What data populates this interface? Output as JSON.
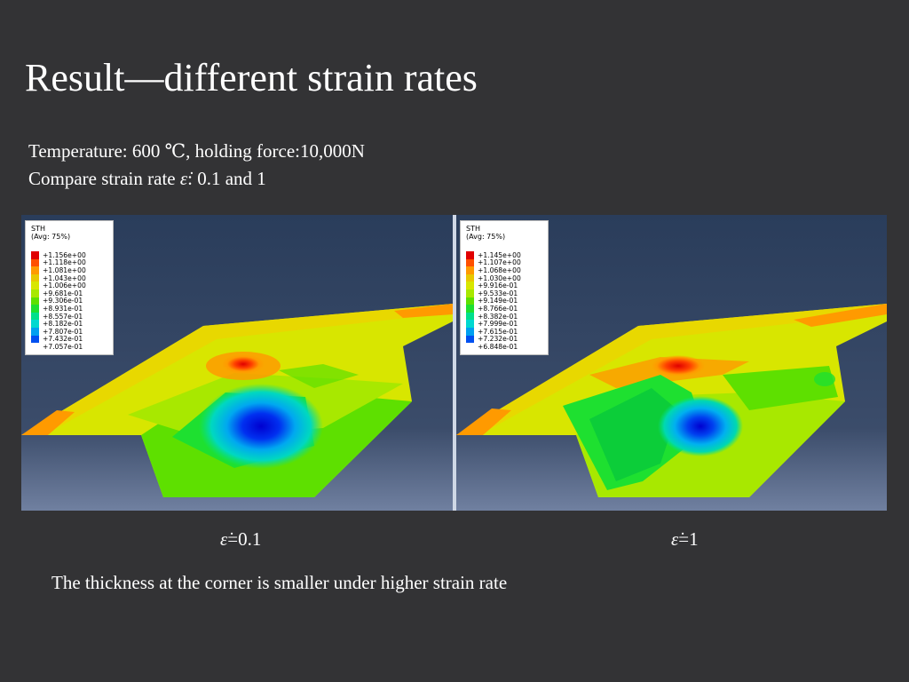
{
  "slide": {
    "title": "Result—different strain rates",
    "subtitle_line1": "Temperature: 600 ℃, holding force:10,000N",
    "subtitle_line2_prefix": "Compare strain rate ",
    "strain_symbol": "ε̇",
    "subtitle_line2_suffix": ": 0.1 and 1",
    "note": "The thickness at the corner is smaller under higher strain rate"
  },
  "panels": [
    {
      "caption_value": "=0.1",
      "legend": {
        "variable": "STH",
        "averaging": "(Avg: 75%)",
        "values": [
          "+1.156e+00",
          "+1.118e+00",
          "+1.081e+00",
          "+1.043e+00",
          "+1.006e+00",
          "+9.681e-01",
          "+9.306e-01",
          "+8.931e-01",
          "+8.557e-01",
          "+8.182e-01",
          "+7.807e-01",
          "+7.432e-01",
          "+7.057e-01"
        ]
      }
    },
    {
      "caption_value": "=1",
      "legend": {
        "variable": "STH",
        "averaging": "(Avg: 75%)",
        "values": [
          "+1.145e+00",
          "+1.107e+00",
          "+1.068e+00",
          "+1.030e+00",
          "+9.916e-01",
          "+9.533e-01",
          "+9.149e-01",
          "+8.766e-01",
          "+8.382e-01",
          "+7.999e-01",
          "+7.615e-01",
          "+7.232e-01",
          "+6.848e-01"
        ]
      }
    }
  ],
  "colors": {
    "legend_scale": [
      "#e00000",
      "#ff5000",
      "#ff9a00",
      "#e8c800",
      "#d8e600",
      "#a8e800",
      "#5ee000",
      "#1ee030",
      "#00e08c",
      "#00d8d0",
      "#00a0f0",
      "#0050f0",
      "#0000d8"
    ],
    "viewport_top": "#2b3e5c",
    "viewport_bottom": "#6f7f99"
  }
}
